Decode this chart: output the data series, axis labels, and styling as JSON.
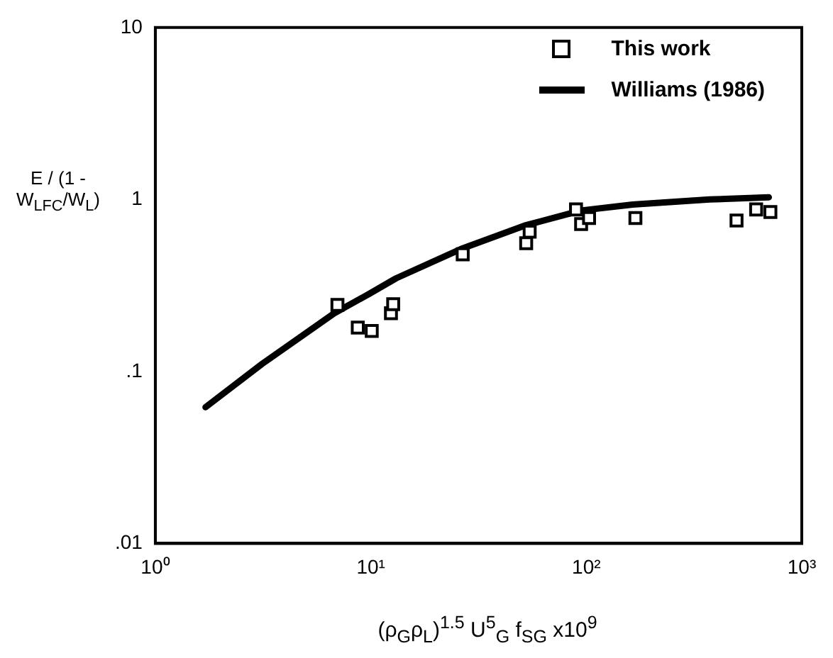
{
  "chart_data": {
    "type": "scatter",
    "xlabel": "(ρ$_{G}$ρ$_{L}$)$^{1.5}$ U$^{5}$$_{G}$ f$_{SG}$ x10$^{9}$",
    "ylabel": "E / (1 - W$_{LFC}$/W$_{L}$)",
    "log": "xy",
    "grid": false,
    "legend": "top right",
    "marker": "square",
    "xlim": [
      1,
      1000
    ],
    "ylim": [
      0.01,
      10
    ],
    "xticks": [
      {
        "value": 1,
        "label": "10⁰"
      },
      {
        "value": 10,
        "label": "10¹"
      },
      {
        "value": 100,
        "label": "10²"
      },
      {
        "value": 1000,
        "label": "10³"
      }
    ],
    "yticks": [
      {
        "value": 0.01,
        "label": ".01"
      },
      {
        "value": 0.1,
        "label": ".1"
      },
      1,
      10
    ],
    "series": [
      {
        "name": "This work",
        "color": "#000000",
        "x": [
          7.0,
          8.7,
          10.1,
          12.4,
          12.7,
          26.7,
          52.6,
          54.6,
          89.6,
          94.6,
          103,
          169,
          498,
          614,
          715
        ],
        "values": [
          0.244,
          0.18,
          0.172,
          0.218,
          0.246,
          0.48,
          0.557,
          0.65,
          0.875,
          0.72,
          0.78,
          0.78,
          0.755,
          0.875,
          0.845
        ]
      },
      {
        "name": "Williams (1986)",
        "type": "line",
        "marker": "none",
        "line_style": "solid",
        "color": "#000000",
        "x": [
          1.71,
          3.14,
          6.77,
          9.95,
          13.1,
          26.7,
          51.7,
          94.6,
          164,
          374,
          703
        ],
        "values": [
          0.062,
          0.111,
          0.218,
          0.285,
          0.348,
          0.52,
          0.705,
          0.863,
          0.935,
          1.0,
          1.03
        ]
      }
    ]
  }
}
